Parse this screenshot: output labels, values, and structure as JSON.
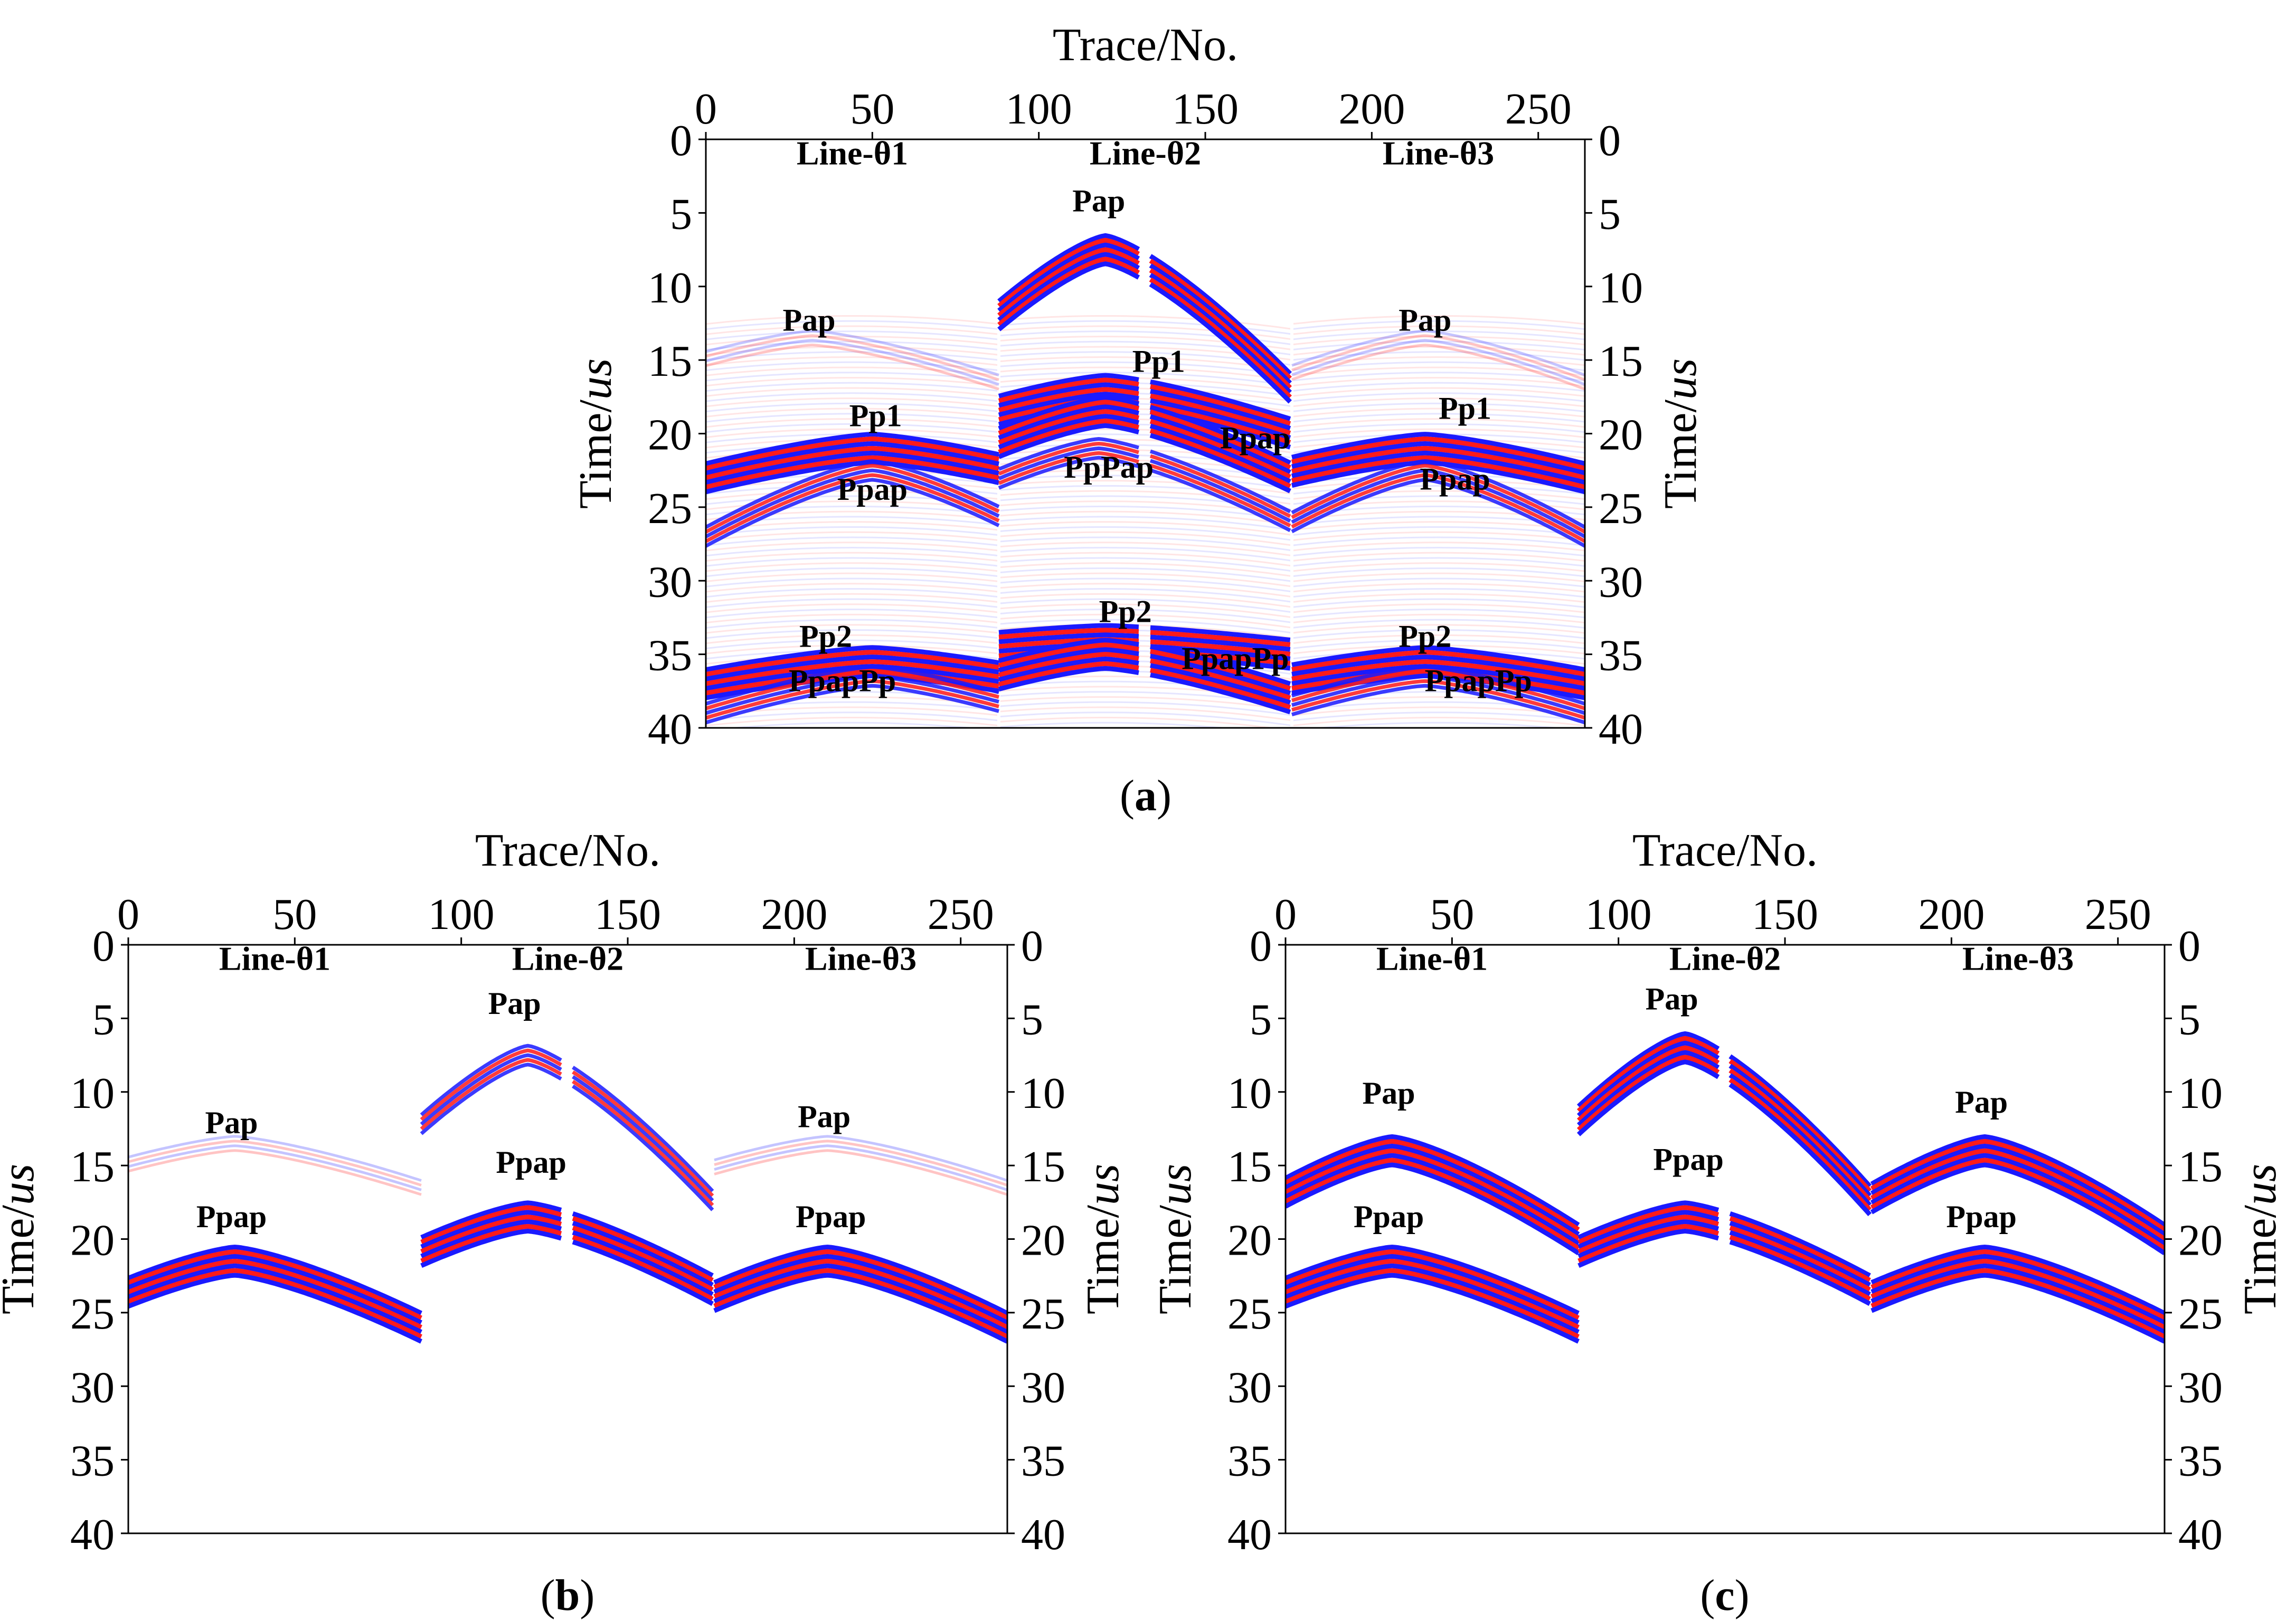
{
  "colors": {
    "positive": "#ff1a1a",
    "negative": "#1a1aff",
    "faint_pos": "#ffd0d0",
    "faint_neg": "#d0d0ff",
    "frame": "#000000"
  },
  "chart_data": [
    {
      "panel_label": "a",
      "type": "heatmap",
      "title": "",
      "xlabel": "Trace/No.",
      "ylabel_text": "Time/",
      "ylabel_unit": "us",
      "xlim": [
        0,
        264
      ],
      "ylim": [
        0,
        40
      ],
      "xticks": [
        "0",
        "50",
        "100",
        "150",
        "200",
        "250"
      ],
      "yticks": [
        "0",
        "5",
        "10",
        "15",
        "20",
        "25",
        "30",
        "35",
        "40"
      ],
      "segments": [
        {
          "name": "Line-θ1",
          "x_range": [
            0,
            88
          ]
        },
        {
          "name": "Line-θ2",
          "x_range": [
            88,
            176
          ],
          "gap_at": 132
        },
        {
          "name": "Line-θ3",
          "x_range": [
            176,
            264
          ]
        }
      ],
      "background_noise": true,
      "events": [
        {
          "label": "Pap",
          "segment": 0,
          "apex_trace": 32,
          "apex_time": 13.5,
          "edge_time": 16.5,
          "strength": "faint",
          "label_pos": [
            31,
            13
          ]
        },
        {
          "label": "Pp1",
          "segment": 0,
          "apex_trace": 50,
          "apex_time": 21,
          "edge_time": 23,
          "strength": "strong",
          "label_pos": [
            51,
            19.5
          ]
        },
        {
          "label": "Ppap",
          "segment": 0,
          "apex_trace": 50,
          "apex_time": 22.5,
          "edge_time": 27,
          "strength": "medium",
          "label_pos": [
            50,
            24.5
          ]
        },
        {
          "label": "Pp2",
          "segment": 0,
          "apex_trace": 50,
          "apex_time": 35.5,
          "edge_time": 37,
          "strength": "strong",
          "label_pos": [
            36,
            34.5
          ]
        },
        {
          "label": "PpapPp",
          "segment": 0,
          "apex_trace": 50,
          "apex_time": 36.5,
          "edge_time": 39,
          "strength": "medium",
          "label_pos": [
            41,
            37.5
          ]
        },
        {
          "label": "Pap",
          "segment": 1,
          "apex_trace": 120,
          "apex_time": 7.5,
          "edge_time": 17,
          "strength": "strong",
          "label_pos": [
            118,
            4.9
          ]
        },
        {
          "label": "Pp1",
          "segment": 1,
          "apex_trace": 120,
          "apex_time": 17,
          "edge_time": 20,
          "strength": "strong",
          "label_pos": [
            136,
            15.8
          ]
        },
        {
          "label": "Ppap",
          "segment": 1,
          "apex_trace": 120,
          "apex_time": 18.5,
          "edge_time": 23,
          "strength": "strong",
          "label_pos": [
            165,
            21
          ]
        },
        {
          "label": "PpPap",
          "segment": 1,
          "apex_trace": 118,
          "apex_time": 21,
          "edge_time": 26,
          "strength": "medium",
          "label_pos": [
            121,
            23
          ]
        },
        {
          "label": "Pp2",
          "segment": 1,
          "apex_trace": 120,
          "apex_time": 34,
          "edge_time": 35,
          "strength": "strong",
          "label_pos": [
            126,
            32.8
          ]
        },
        {
          "label": "PpapPp",
          "segment": 1,
          "apex_trace": 120,
          "apex_time": 35,
          "edge_time": 38,
          "strength": "strong",
          "label_pos": [
            159,
            36
          ]
        },
        {
          "label": "Pap",
          "segment": 2,
          "apex_trace": 216,
          "apex_time": 13.5,
          "edge_time": 16.5,
          "strength": "faint",
          "label_pos": [
            216,
            13
          ]
        },
        {
          "label": "Pp1",
          "segment": 2,
          "apex_trace": 216,
          "apex_time": 21,
          "edge_time": 23,
          "strength": "strong",
          "label_pos": [
            228,
            19
          ]
        },
        {
          "label": "Ppap",
          "segment": 2,
          "apex_trace": 216,
          "apex_time": 22.5,
          "edge_time": 27,
          "strength": "medium",
          "label_pos": [
            225,
            23.8
          ]
        },
        {
          "label": "Pp2",
          "segment": 2,
          "apex_trace": 216,
          "apex_time": 35.5,
          "edge_time": 37,
          "strength": "strong",
          "label_pos": [
            216,
            34.5
          ]
        },
        {
          "label": "PpapPp",
          "segment": 2,
          "apex_trace": 216,
          "apex_time": 36.5,
          "edge_time": 39,
          "strength": "medium",
          "label_pos": [
            232,
            37.5
          ]
        }
      ]
    },
    {
      "panel_label": "b",
      "type": "heatmap",
      "title": "",
      "xlabel": "Trace/No.",
      "ylabel_text": "Time/",
      "ylabel_unit": "us",
      "xlim": [
        0,
        264
      ],
      "ylim": [
        0,
        40
      ],
      "xticks": [
        "0",
        "50",
        "100",
        "150",
        "200",
        "250"
      ],
      "yticks": [
        "0",
        "5",
        "10",
        "15",
        "20",
        "25",
        "30",
        "35",
        "40"
      ],
      "segments": [
        {
          "name": "Line-θ1",
          "x_range": [
            0,
            88
          ]
        },
        {
          "name": "Line-θ2",
          "x_range": [
            88,
            176
          ],
          "gap_at": 132
        },
        {
          "name": "Line-θ3",
          "x_range": [
            176,
            264
          ]
        }
      ],
      "background_noise": false,
      "events": [
        {
          "label": "Pap",
          "segment": 0,
          "apex_trace": 32,
          "apex_time": 13.5,
          "edge_time": 16.5,
          "strength": "faint",
          "label_pos": [
            31,
            12.8
          ]
        },
        {
          "label": "Ppap",
          "segment": 0,
          "apex_trace": 32,
          "apex_time": 21.5,
          "edge_time": 26,
          "strength": "strong",
          "label_pos": [
            31,
            19.2
          ]
        },
        {
          "label": "Pap",
          "segment": 1,
          "apex_trace": 120,
          "apex_time": 7.5,
          "edge_time": 17.5,
          "strength": "medium",
          "label_pos": [
            116,
            4.7
          ]
        },
        {
          "label": "Ppap",
          "segment": 1,
          "apex_trace": 120,
          "apex_time": 18.5,
          "edge_time": 23.5,
          "strength": "strong",
          "label_pos": [
            121,
            15.5
          ]
        },
        {
          "label": "Pap",
          "segment": 2,
          "apex_trace": 210,
          "apex_time": 13.5,
          "edge_time": 16.5,
          "strength": "faint",
          "label_pos": [
            209,
            12.4
          ]
        },
        {
          "label": "Ppap",
          "segment": 2,
          "apex_trace": 210,
          "apex_time": 21.5,
          "edge_time": 26,
          "strength": "strong",
          "label_pos": [
            211,
            19.2
          ]
        }
      ]
    },
    {
      "panel_label": "c",
      "type": "heatmap",
      "title": "",
      "xlabel": "Trace/No.",
      "ylabel_text": "Time/",
      "ylabel_unit": "us",
      "xlim": [
        0,
        264
      ],
      "ylim": [
        0,
        40
      ],
      "xticks": [
        "0",
        "50",
        "100",
        "150",
        "200",
        "250"
      ],
      "yticks": [
        "0",
        "5",
        "10",
        "15",
        "20",
        "25",
        "30",
        "35",
        "40"
      ],
      "segments": [
        {
          "name": "Line-θ1",
          "x_range": [
            0,
            88
          ]
        },
        {
          "name": "Line-θ2",
          "x_range": [
            88,
            176
          ],
          "gap_at": 132
        },
        {
          "name": "Line-θ3",
          "x_range": [
            176,
            264
          ]
        }
      ],
      "background_noise": false,
      "events": [
        {
          "label": "Pap",
          "segment": 0,
          "apex_trace": 32,
          "apex_time": 14,
          "edge_time": 20,
          "strength": "strong",
          "label_pos": [
            31,
            10.8
          ]
        },
        {
          "label": "Ppap",
          "segment": 0,
          "apex_trace": 32,
          "apex_time": 21.5,
          "edge_time": 26,
          "strength": "strong",
          "label_pos": [
            31,
            19.2
          ]
        },
        {
          "label": "Pap",
          "segment": 1,
          "apex_trace": 120,
          "apex_time": 7,
          "edge_time": 17.5,
          "strength": "strong",
          "label_pos": [
            116,
            4.4
          ]
        },
        {
          "label": "Ppap",
          "segment": 1,
          "apex_trace": 120,
          "apex_time": 18.5,
          "edge_time": 23.5,
          "strength": "strong",
          "label_pos": [
            121,
            15.3
          ]
        },
        {
          "label": "Pap",
          "segment": 2,
          "apex_trace": 210,
          "apex_time": 14,
          "edge_time": 20,
          "strength": "strong",
          "label_pos": [
            209,
            11.4
          ]
        },
        {
          "label": "Ppap",
          "segment": 2,
          "apex_trace": 210,
          "apex_time": 21.5,
          "edge_time": 26,
          "strength": "strong",
          "label_pos": [
            209,
            19.2
          ]
        }
      ]
    }
  ]
}
